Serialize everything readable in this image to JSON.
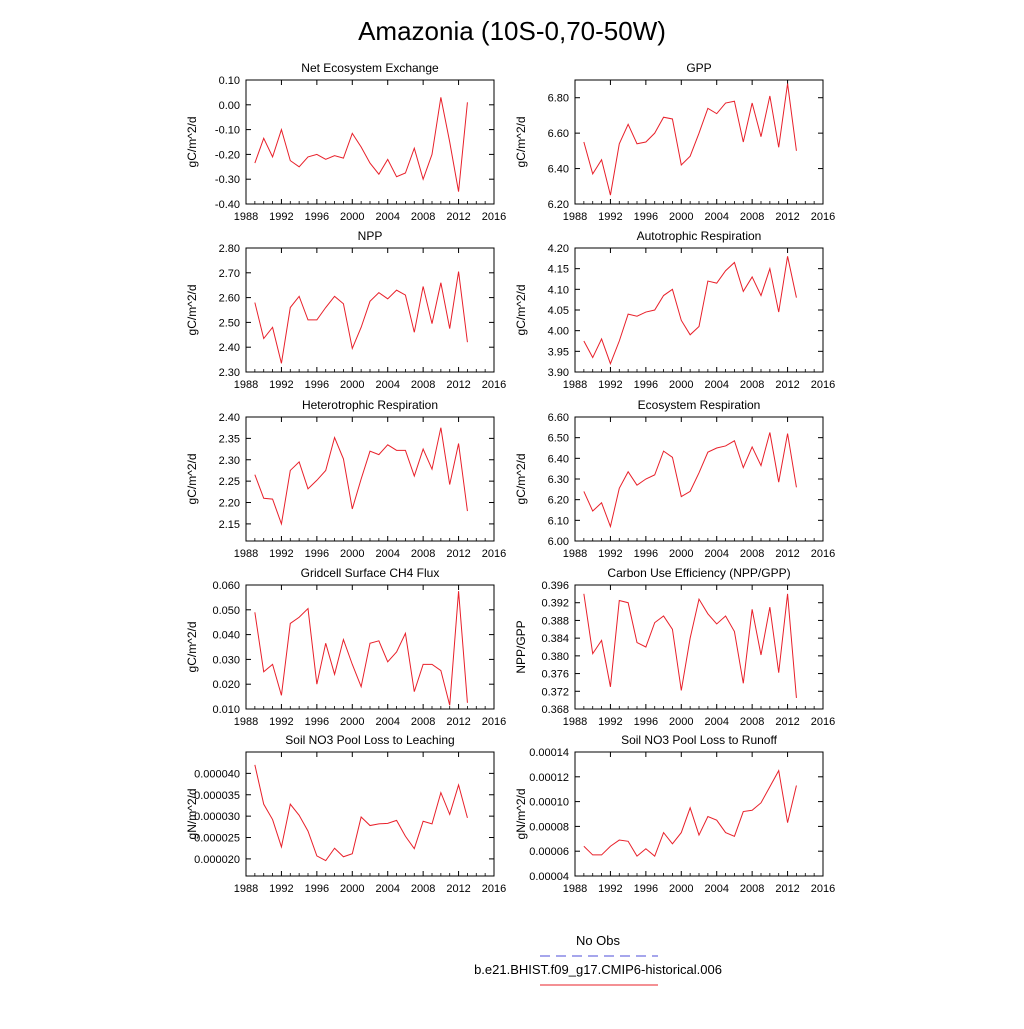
{
  "page": {
    "title": "Amazonia (10S-0,70-50W)",
    "legend": [
      {
        "label": "No Obs",
        "color": "#4d4dd9",
        "dashed": true
      },
      {
        "label": "b.e21.BHIST.f09_g17.CMIP6-historical.006",
        "color": "#e8202a",
        "dashed": false
      }
    ]
  },
  "chart_data": [
    {
      "type": "line",
      "title": "Net Ecosystem Exchange",
      "ylabel": "gC/m^2/d",
      "xlim": [
        1988,
        2016
      ],
      "x_ticks": [
        "1988",
        "1992",
        "1996",
        "2000",
        "2004",
        "2008",
        "2012",
        "2016"
      ],
      "ylim": [
        -0.4,
        0.1
      ],
      "y_ticks": [
        "-0.40",
        "-0.30",
        "-0.20",
        "-0.10",
        "0.00",
        "0.10"
      ],
      "x": [
        1989,
        1990,
        1991,
        1992,
        1993,
        1994,
        1995,
        1996,
        1997,
        1998,
        1999,
        2000,
        2001,
        2002,
        2003,
        2004,
        2005,
        2006,
        2007,
        2008,
        2009,
        2010,
        2011,
        2012,
        2013
      ],
      "series": [
        {
          "values": [
            -0.235,
            -0.135,
            -0.21,
            -0.1,
            -0.225,
            -0.25,
            -0.21,
            -0.2,
            -0.22,
            -0.205,
            -0.215,
            -0.115,
            -0.17,
            -0.235,
            -0.28,
            -0.22,
            -0.29,
            -0.275,
            -0.175,
            -0.3,
            -0.2,
            0.03,
            -0.15,
            -0.35,
            0.01
          ],
          "color": "#e8202a"
        }
      ]
    },
    {
      "type": "line",
      "title": "GPP",
      "ylabel": "gC/m^2/d",
      "xlim": [
        1988,
        2016
      ],
      "x_ticks": [
        "1988",
        "1992",
        "1996",
        "2000",
        "2004",
        "2008",
        "2012",
        "2016"
      ],
      "ylim": [
        6.2,
        6.9
      ],
      "y_ticks": [
        "6.20",
        "6.40",
        "6.60",
        "6.80"
      ],
      "x": [
        1989,
        1990,
        1991,
        1992,
        1993,
        1994,
        1995,
        1996,
        1997,
        1998,
        1999,
        2000,
        2001,
        2002,
        2003,
        2004,
        2005,
        2006,
        2007,
        2008,
        2009,
        2010,
        2011,
        2012,
        2013
      ],
      "series": [
        {
          "values": [
            6.55,
            6.37,
            6.45,
            6.25,
            6.54,
            6.65,
            6.54,
            6.55,
            6.6,
            6.69,
            6.68,
            6.42,
            6.47,
            6.6,
            6.74,
            6.71,
            6.77,
            6.78,
            6.55,
            6.77,
            6.58,
            6.81,
            6.52,
            6.88,
            6.5
          ],
          "color": "#e8202a"
        }
      ]
    },
    {
      "type": "line",
      "title": "NPP",
      "ylabel": "gC/m^2/d",
      "xlim": [
        1988,
        2016
      ],
      "x_ticks": [
        "1988",
        "1992",
        "1996",
        "2000",
        "2004",
        "2008",
        "2012",
        "2016"
      ],
      "ylim": [
        2.3,
        2.8
      ],
      "y_ticks": [
        "2.30",
        "2.40",
        "2.50",
        "2.60",
        "2.70",
        "2.80"
      ],
      "x": [
        1989,
        1990,
        1991,
        1992,
        1993,
        1994,
        1995,
        1996,
        1997,
        1998,
        1999,
        2000,
        2001,
        2002,
        2003,
        2004,
        2005,
        2006,
        2007,
        2008,
        2009,
        2010,
        2011,
        2012,
        2013
      ],
      "series": [
        {
          "values": [
            2.58,
            2.435,
            2.48,
            2.335,
            2.56,
            2.605,
            2.51,
            2.51,
            2.56,
            2.605,
            2.575,
            2.395,
            2.48,
            2.585,
            2.62,
            2.595,
            2.63,
            2.61,
            2.46,
            2.645,
            2.495,
            2.66,
            2.475,
            2.705,
            2.42
          ],
          "color": "#e8202a"
        }
      ]
    },
    {
      "type": "line",
      "title": "Autotrophic Respiration",
      "ylabel": "gC/m^2/d",
      "xlim": [
        1988,
        2016
      ],
      "x_ticks": [
        "1988",
        "1992",
        "1996",
        "2000",
        "2004",
        "2008",
        "2012",
        "2016"
      ],
      "ylim": [
        3.9,
        4.2
      ],
      "y_ticks": [
        "3.90",
        "3.95",
        "4.00",
        "4.05",
        "4.10",
        "4.15",
        "4.20"
      ],
      "x": [
        1989,
        1990,
        1991,
        1992,
        1993,
        1994,
        1995,
        1996,
        1997,
        1998,
        1999,
        2000,
        2001,
        2002,
        2003,
        2004,
        2005,
        2006,
        2007,
        2008,
        2009,
        2010,
        2011,
        2012,
        2013
      ],
      "series": [
        {
          "values": [
            3.975,
            3.935,
            3.98,
            3.92,
            3.975,
            4.04,
            4.035,
            4.045,
            4.05,
            4.085,
            4.1,
            4.025,
            3.99,
            4.01,
            4.12,
            4.115,
            4.145,
            4.165,
            4.095,
            4.13,
            4.085,
            4.15,
            4.045,
            4.18,
            4.08
          ],
          "color": "#e8202a"
        }
      ]
    },
    {
      "type": "line",
      "title": "Heterotrophic Respiration",
      "ylabel": "gC/m^2/d",
      "xlim": [
        1988,
        2016
      ],
      "x_ticks": [
        "1988",
        "1992",
        "1996",
        "2000",
        "2004",
        "2008",
        "2012",
        "2016"
      ],
      "ylim": [
        2.11,
        2.4
      ],
      "y_ticks": [
        "2.15",
        "2.20",
        "2.25",
        "2.30",
        "2.35",
        "2.40"
      ],
      "x": [
        1989,
        1990,
        1991,
        1992,
        1993,
        1994,
        1995,
        1996,
        1997,
        1998,
        1999,
        2000,
        2001,
        2002,
        2003,
        2004,
        2005,
        2006,
        2007,
        2008,
        2009,
        2010,
        2011,
        2012,
        2013
      ],
      "series": [
        {
          "values": [
            2.265,
            2.21,
            2.208,
            2.15,
            2.275,
            2.295,
            2.232,
            2.252,
            2.275,
            2.352,
            2.302,
            2.185,
            2.255,
            2.32,
            2.312,
            2.335,
            2.322,
            2.322,
            2.262,
            2.325,
            2.278,
            2.375,
            2.242,
            2.338,
            2.18
          ],
          "color": "#e8202a"
        }
      ]
    },
    {
      "type": "line",
      "title": "Ecosystem Respiration",
      "ylabel": "gC/m^2/d",
      "xlim": [
        1988,
        2016
      ],
      "x_ticks": [
        "1988",
        "1992",
        "1996",
        "2000",
        "2004",
        "2008",
        "2012",
        "2016"
      ],
      "ylim": [
        6.0,
        6.6
      ],
      "y_ticks": [
        "6.00",
        "6.10",
        "6.20",
        "6.30",
        "6.40",
        "6.50",
        "6.60"
      ],
      "x": [
        1989,
        1990,
        1991,
        1992,
        1993,
        1994,
        1995,
        1996,
        1997,
        1998,
        1999,
        2000,
        2001,
        2002,
        2003,
        2004,
        2005,
        2006,
        2007,
        2008,
        2009,
        2010,
        2011,
        2012,
        2013
      ],
      "series": [
        {
          "values": [
            6.24,
            6.145,
            6.185,
            6.07,
            6.255,
            6.335,
            6.27,
            6.3,
            6.32,
            6.435,
            6.405,
            6.215,
            6.24,
            6.33,
            6.43,
            6.45,
            6.46,
            6.485,
            6.355,
            6.455,
            6.365,
            6.525,
            6.285,
            6.52,
            6.26
          ],
          "color": "#e8202a"
        }
      ]
    },
    {
      "type": "line",
      "title": "Gridcell Surface CH4 Flux",
      "ylabel": "gC/m^2/d",
      "xlim": [
        1988,
        2016
      ],
      "x_ticks": [
        "1988",
        "1992",
        "1996",
        "2000",
        "2004",
        "2008",
        "2012",
        "2016"
      ],
      "ylim": [
        0.01,
        0.06
      ],
      "y_ticks": [
        "0.010",
        "0.020",
        "0.030",
        "0.040",
        "0.050",
        "0.060"
      ],
      "x": [
        1989,
        1990,
        1991,
        1992,
        1993,
        1994,
        1995,
        1996,
        1997,
        1998,
        1999,
        2000,
        2001,
        2002,
        2003,
        2004,
        2005,
        2006,
        2007,
        2008,
        2009,
        2010,
        2011,
        2012,
        2013
      ],
      "series": [
        {
          "values": [
            0.049,
            0.025,
            0.028,
            0.0155,
            0.0445,
            0.047,
            0.0505,
            0.02,
            0.0365,
            0.024,
            0.038,
            0.028,
            0.019,
            0.0365,
            0.0375,
            0.029,
            0.033,
            0.0405,
            0.017,
            0.028,
            0.028,
            0.0255,
            0.0115,
            0.0575,
            0.0125
          ],
          "color": "#e8202a"
        }
      ]
    },
    {
      "type": "line",
      "title": "Carbon Use Efficiency (NPP/GPP)",
      "ylabel": "NPP/GPP",
      "xlim": [
        1988,
        2016
      ],
      "x_ticks": [
        "1988",
        "1992",
        "1996",
        "2000",
        "2004",
        "2008",
        "2012",
        "2016"
      ],
      "ylim": [
        0.368,
        0.396
      ],
      "y_ticks": [
        "0.368",
        "0.372",
        "0.376",
        "0.380",
        "0.384",
        "0.388",
        "0.392",
        "0.396"
      ],
      "x": [
        1989,
        1990,
        1991,
        1992,
        1993,
        1994,
        1995,
        1996,
        1997,
        1998,
        1999,
        2000,
        2001,
        2002,
        2003,
        2004,
        2005,
        2006,
        2007,
        2008,
        2009,
        2010,
        2011,
        2012,
        2013
      ],
      "series": [
        {
          "values": [
            0.394,
            0.3805,
            0.3835,
            0.373,
            0.3925,
            0.392,
            0.383,
            0.382,
            0.3875,
            0.389,
            0.386,
            0.3722,
            0.384,
            0.3928,
            0.3895,
            0.3872,
            0.389,
            0.3855,
            0.3738,
            0.3905,
            0.3802,
            0.391,
            0.3762,
            0.394,
            0.3705
          ],
          "color": "#e8202a"
        }
      ]
    },
    {
      "type": "line",
      "title": "Soil NO3 Pool Loss to Leaching",
      "ylabel": "gN/m^2/d",
      "xlim": [
        1988,
        2016
      ],
      "x_ticks": [
        "1988",
        "1992",
        "1996",
        "2000",
        "2004",
        "2008",
        "2012",
        "2016"
      ],
      "ylim": [
        1.6e-05,
        4.5e-05
      ],
      "y_ticks": [
        "0.000020",
        "0.000025",
        "0.000030",
        "0.000035",
        "0.000040"
      ],
      "x": [
        1989,
        1990,
        1991,
        1992,
        1993,
        1994,
        1995,
        1996,
        1997,
        1998,
        1999,
        2000,
        2001,
        2002,
        2003,
        2004,
        2005,
        2006,
        2007,
        2008,
        2009,
        2010,
        2011,
        2012,
        2013
      ],
      "series": [
        {
          "values": [
            4.2e-05,
            3.28e-05,
            2.92e-05,
            2.28e-05,
            3.28e-05,
            3.02e-05,
            2.65e-05,
            2.07e-05,
            1.96e-05,
            2.25e-05,
            2.05e-05,
            2.12e-05,
            2.98e-05,
            2.78e-05,
            2.82e-05,
            2.83e-05,
            2.9e-05,
            2.53e-05,
            2.24e-05,
            2.88e-05,
            2.82e-05,
            3.55e-05,
            3.04e-05,
            3.73e-05,
            2.96e-05
          ],
          "color": "#e8202a"
        }
      ]
    },
    {
      "type": "line",
      "title": "Soil NO3 Pool Loss to Runoff",
      "ylabel": "gN/m^2/d",
      "xlim": [
        1988,
        2016
      ],
      "x_ticks": [
        "1988",
        "1992",
        "1996",
        "2000",
        "2004",
        "2008",
        "2012",
        "2016"
      ],
      "ylim": [
        4e-05,
        0.00014
      ],
      "y_ticks": [
        "0.00004",
        "0.00006",
        "0.00008",
        "0.00010",
        "0.00012",
        "0.00014"
      ],
      "x": [
        1989,
        1990,
        1991,
        1992,
        1993,
        1994,
        1995,
        1996,
        1997,
        1998,
        1999,
        2000,
        2001,
        2002,
        2003,
        2004,
        2005,
        2006,
        2007,
        2008,
        2009,
        2010,
        2011,
        2012,
        2013
      ],
      "series": [
        {
          "values": [
            6.4e-05,
            5.7e-05,
            5.7e-05,
            6.4e-05,
            6.9e-05,
            6.8e-05,
            5.6e-05,
            6.2e-05,
            5.6e-05,
            7.5e-05,
            6.6e-05,
            7.5e-05,
            9.5e-05,
            7.3e-05,
            8.8e-05,
            8.5e-05,
            7.5e-05,
            7.2e-05,
            9.2e-05,
            9.3e-05,
            9.9e-05,
            0.000112,
            0.000125,
            8.3e-05,
            0.000113
          ],
          "color": "#e8202a"
        }
      ]
    }
  ]
}
